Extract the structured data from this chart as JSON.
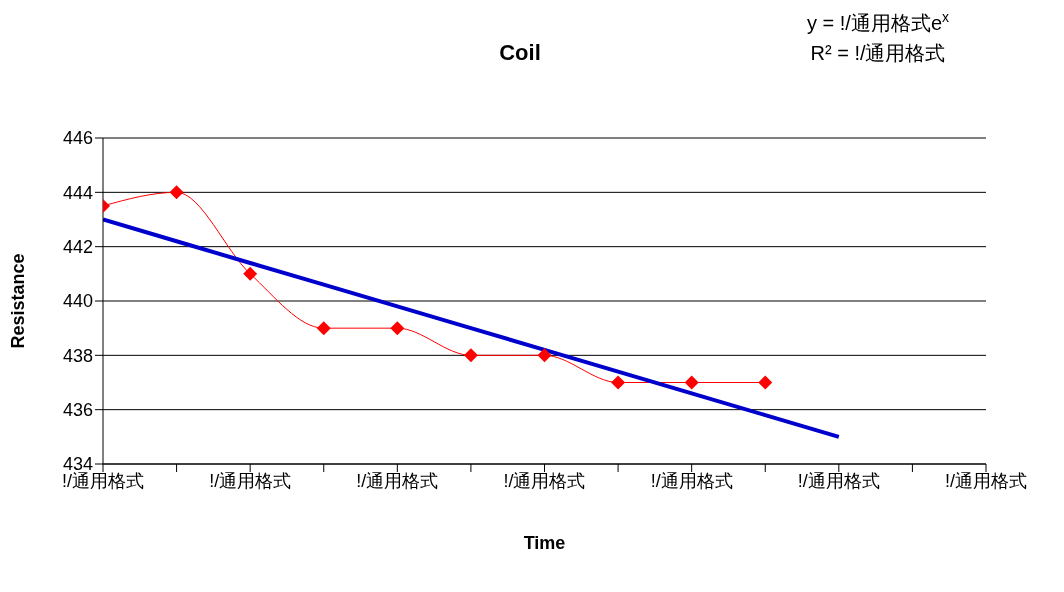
{
  "chart_data": {
    "type": "line",
    "title": "Coil",
    "xlabel": "Time",
    "ylabel": "Resistance",
    "annotations": [
      "y = !/通用格式e$^{x}$",
      "R² = !/通用格式"
    ],
    "categories": [
      "!/通用格式",
      null,
      "!/通用格式",
      null,
      "!/通用格式",
      null,
      "!/通用格式",
      null,
      "!/通用格式",
      null,
      "!/通用格式",
      null,
      "!/通用格式"
    ],
    "series": [
      {
        "color": "#ff0000",
        "values": [
          443.5,
          444,
          441,
          439,
          439,
          438,
          438,
          437,
          437,
          437,
          null,
          null,
          null
        ]
      },
      {
        "type": "line",
        "color": "#0000cc",
        "values": [
          443,
          442.2,
          441.4,
          440.6,
          439.8,
          439,
          438.2,
          437.4,
          436.6,
          435.8,
          435,
          null,
          null
        ],
        "marker": "none"
      }
    ],
    "ylim": [
      434,
      446
    ],
    "yticks": [
      434,
      436,
      438,
      440,
      442,
      444,
      446
    ],
    "grid": "y",
    "marker": "diamond"
  }
}
